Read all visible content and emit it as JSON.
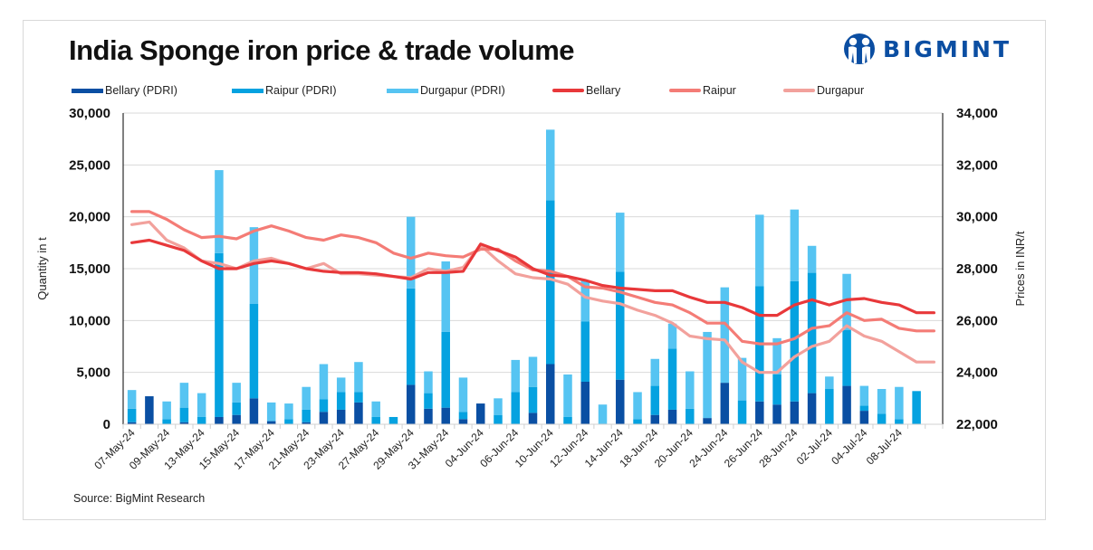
{
  "header": {
    "title": "India Sponge iron price & trade volume",
    "logo_text": "BIGMINT",
    "logo_icon": "bigmint-people-icon"
  },
  "footer": {
    "source": "Source: BigMint Research"
  },
  "colors": {
    "bellary_bar": "#0a4fa3",
    "raipur_bar": "#05a2e0",
    "durgapur_bar": "#56c4f2",
    "bellary_line": "#e8383a",
    "raipur_line": "#f47c76",
    "durgapur_line": "#f2a19c",
    "gridline": "#d9d9d9"
  },
  "chart_data": {
    "type": "bar",
    "combo": "stacked-bar + line (secondary axis)",
    "title": "India Sponge iron price & trade volume",
    "ylabel": "Quantity in t",
    "y2label": "Prices in INR/t",
    "ylim": [
      0,
      30000
    ],
    "y_ticks": [
      "0",
      "5,000",
      "10,000",
      "15,000",
      "20,000",
      "25,000",
      "30,000"
    ],
    "y2lim": [
      22000,
      34000
    ],
    "y2_ticks": [
      "22,000",
      "24,000",
      "26,000",
      "28,000",
      "30,000",
      "32,000",
      "34,000"
    ],
    "grid": true,
    "legend_position": "top",
    "x_tick_labels": [
      "07-May-24",
      "09-May-24",
      "13-May-24",
      "15-May-24",
      "17-May-24",
      "21-May-24",
      "23-May-24",
      "27-May-24",
      "29-May-24",
      "31-May-24",
      "04-Jun-24",
      "06-Jun-24",
      "10-Jun-24",
      "12-Jun-24",
      "14-Jun-24",
      "18-Jun-24",
      "20-Jun-24",
      "24-Jun-24",
      "26-Jun-24",
      "28-Jun-24",
      "02-Jul-24",
      "04-Jul-24",
      "08-Jul-24"
    ],
    "x_label_every": 2,
    "n_points": 47,
    "bar_series": [
      {
        "name": "Bellary (PDRI)",
        "values": [
          200,
          2700,
          0,
          200,
          0,
          700,
          900,
          2500,
          300,
          0,
          200,
          1200,
          1400,
          2100,
          0,
          0,
          3800,
          1500,
          1600,
          500,
          2000,
          0,
          0,
          1100,
          5800,
          0,
          4100,
          0,
          4300,
          0,
          900,
          1400,
          0,
          600,
          4000,
          0,
          2200,
          1900,
          2200,
          3000,
          0,
          3700,
          1300,
          0,
          0,
          0,
          0
        ]
      },
      {
        "name": "Raipur (PDRI)",
        "values": [
          1300,
          0,
          500,
          1400,
          700,
          15800,
          1200,
          9100,
          0,
          500,
          1200,
          1200,
          1700,
          1000,
          700,
          700,
          9300,
          1500,
          7300,
          700,
          0,
          900,
          3100,
          2500,
          15800,
          700,
          5800,
          0,
          10400,
          500,
          2800,
          5900,
          1500,
          0,
          0,
          2300,
          11100,
          2900,
          11600,
          11600,
          3400,
          5400,
          500,
          1000,
          500,
          3200,
          0
        ]
      },
      {
        "name": "Durgapur (PDRI)",
        "values": [
          1800,
          0,
          1700,
          2400,
          2300,
          8000,
          1900,
          7400,
          1800,
          1500,
          2200,
          3400,
          1400,
          2900,
          1500,
          0,
          6900,
          2100,
          6800,
          3300,
          0,
          1600,
          3100,
          2900,
          6800,
          4100,
          4000,
          1900,
          5700,
          2600,
          2600,
          2400,
          3600,
          8300,
          9200,
          4100,
          6900,
          3500,
          6900,
          2600,
          1200,
          5400,
          1900,
          2400,
          3100,
          0,
          0
        ]
      }
    ],
    "line_series": [
      {
        "name": "Bellary",
        "axis": "secondary",
        "values": [
          29000,
          29100,
          28900,
          28700,
          28300,
          28000,
          28000,
          28200,
          28300,
          28200,
          28000,
          27900,
          27850,
          27850,
          27800,
          27700,
          27600,
          27850,
          27850,
          27900,
          28950,
          28700,
          28450,
          28000,
          27750,
          27700,
          27550,
          27350,
          27250,
          27200,
          27150,
          27150,
          26900,
          26700,
          26700,
          26500,
          26200,
          26200,
          26600,
          26800,
          26600,
          26800,
          26850,
          26700,
          26600,
          26300,
          26300
        ]
      },
      {
        "name": "Raipur",
        "axis": "secondary",
        "values": [
          30200,
          30200,
          29900,
          29500,
          29200,
          29250,
          29150,
          29450,
          29650,
          29450,
          29200,
          29100,
          29300,
          29200,
          29000,
          28600,
          28400,
          28600,
          28500,
          28450,
          28750,
          28750,
          28300,
          27950,
          27900,
          27700,
          27300,
          27250,
          27100,
          26900,
          26700,
          26600,
          26300,
          25900,
          25900,
          25200,
          25100,
          25100,
          25300,
          25700,
          25800,
          26300,
          26000,
          26050,
          25700,
          25600,
          25600
        ]
      },
      {
        "name": "Durgapur",
        "axis": "secondary",
        "values": [
          29700,
          29800,
          29100,
          28800,
          28300,
          28200,
          28000,
          28300,
          28400,
          28200,
          28000,
          28200,
          27800,
          27800,
          27750,
          27700,
          27650,
          28000,
          27900,
          28050,
          28900,
          28300,
          27800,
          27650,
          27600,
          27400,
          26900,
          26750,
          26650,
          26400,
          26200,
          25900,
          25400,
          25300,
          25250,
          24400,
          24000,
          24000,
          24600,
          25000,
          25200,
          25800,
          25400,
          25200,
          24800,
          24400,
          24400
        ]
      }
    ]
  }
}
